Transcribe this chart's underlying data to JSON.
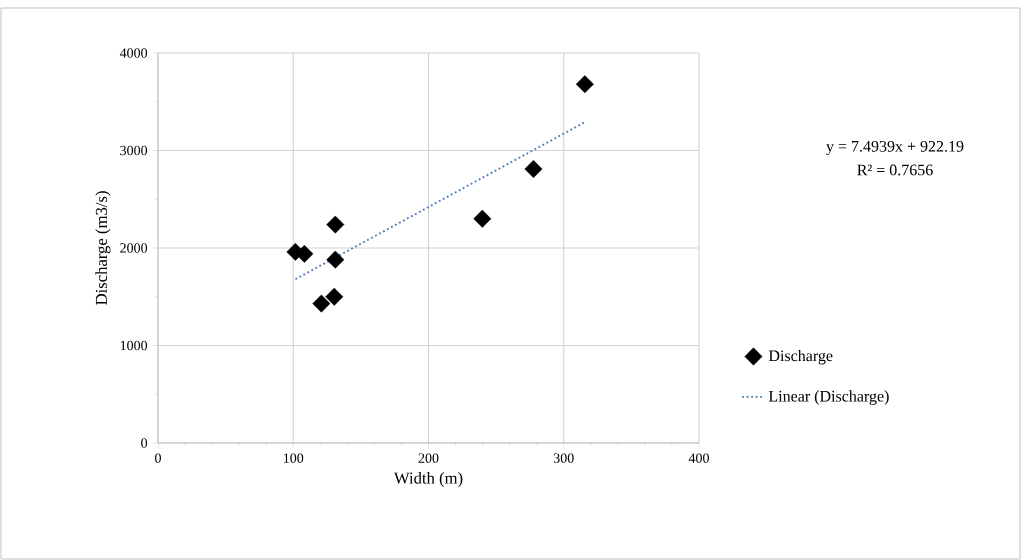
{
  "chart_data": {
    "type": "scatter",
    "xlabel": "Width (m)",
    "ylabel": "Discharge (m3/s)",
    "xlim": [
      0,
      400
    ],
    "xticks": [
      0,
      100,
      200,
      300,
      400
    ],
    "ylim": [
      0,
      4000
    ],
    "yticks": [
      0,
      1000,
      2000,
      3000,
      4000
    ],
    "grid": true,
    "legend": "right",
    "series": [
      {
        "name": "Discharge",
        "marker": "diamond",
        "color": "#000000",
        "x": [
          101.6,
          108.2,
          131.1,
          131.1,
          120.8,
          130.3,
          239.8,
          277.6,
          315.6
        ],
        "values": [
          1960,
          1940,
          2240,
          1880,
          1430,
          1500,
          2300,
          2810,
          3680
        ]
      },
      {
        "name": "Linear (Discharge)",
        "type": "line",
        "marker": "none",
        "line_style": "dotted",
        "color": "#4a7ebb",
        "x": [
          101.6,
          315.6
        ],
        "values": [
          1680,
          3290
        ]
      }
    ],
    "annotations": [
      "y = 7.4939x + 922.19",
      "R² = 0.7656"
    ]
  }
}
